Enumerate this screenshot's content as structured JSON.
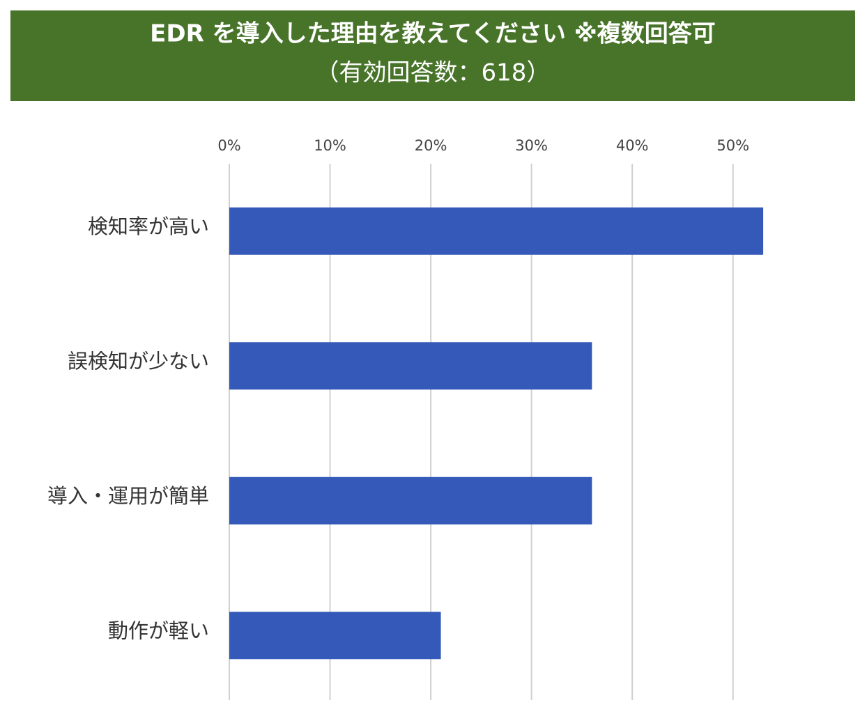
{
  "chart_data": {
    "type": "bar",
    "orientation": "horizontal",
    "title": "EDR を導入した理由を教えてください ※複数回答可",
    "subtitle": "（有効回答数：618）",
    "categories": [
      "検知率が高い",
      "誤検知が少ない",
      "導入・運用が簡単",
      "動作が軽い"
    ],
    "values": [
      53,
      36,
      36,
      21
    ],
    "color": "#3559b8",
    "xlim": [
      0,
      55
    ],
    "xticks": [
      {
        "value": 0,
        "label": "0%"
      },
      {
        "value": 10,
        "label": "10%"
      },
      {
        "value": 20,
        "label": "20%"
      },
      {
        "value": 30,
        "label": "30%"
      },
      {
        "value": 40,
        "label": "40%"
      },
      {
        "value": 50,
        "label": "50%"
      }
    ],
    "grid": true
  }
}
